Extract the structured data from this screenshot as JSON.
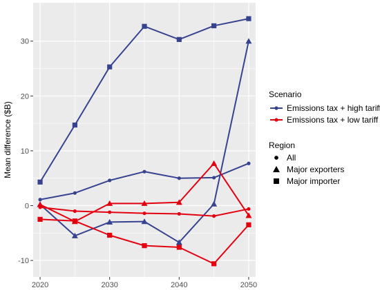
{
  "chart_data": {
    "type": "line",
    "xlabel": "",
    "ylabel": "Mean difference ($B)",
    "x": [
      2020,
      2025,
      2030,
      2035,
      2040,
      2045,
      2050
    ],
    "xticks": [
      "2020",
      "2030",
      "2040",
      "2050"
    ],
    "yticks": [
      "-10",
      "0",
      "10",
      "20",
      "30"
    ],
    "xlim": [
      2019,
      2051
    ],
    "ylim": [
      -13,
      37
    ],
    "grid": true,
    "background": "#ebebeb",
    "legend_placement": "right",
    "colors": {
      "Emissions tax + high tariff": "#36438f",
      "Emissions tax + low tariff": "#e3000f"
    },
    "shapes": {
      "All": "circle",
      "Major exporters": "triangle",
      "Major importer": "square"
    },
    "legend": {
      "color_title": "Scenario",
      "color_entries": [
        "Emissions tax + high tariff",
        "Emissions tax + low tariff"
      ],
      "shape_title": "Region",
      "shape_entries": [
        "All",
        "Major exporters",
        "Major importer"
      ]
    },
    "series": [
      {
        "scenario": "Emissions tax + high tariff",
        "region": "All",
        "values": [
          1.1,
          2.3,
          4.6,
          6.2,
          5.0,
          5.1,
          7.7
        ]
      },
      {
        "scenario": "Emissions tax + high tariff",
        "region": "Major exporters",
        "values": [
          0.2,
          -5.5,
          -3.0,
          -2.9,
          -6.7,
          0.3,
          30.0
        ]
      },
      {
        "scenario": "Emissions tax + high tariff",
        "region": "Major importer",
        "values": [
          4.3,
          14.7,
          25.3,
          32.7,
          30.3,
          32.8,
          34.1
        ]
      },
      {
        "scenario": "Emissions tax + low tariff",
        "region": "All",
        "values": [
          -0.3,
          -1.0,
          -1.2,
          -1.4,
          -1.5,
          -1.9,
          -0.6
        ]
      },
      {
        "scenario": "Emissions tax + low tariff",
        "region": "Major exporters",
        "values": [
          0.2,
          -2.9,
          0.4,
          0.4,
          0.6,
          7.7,
          -1.8
        ]
      },
      {
        "scenario": "Emissions tax + low tariff",
        "region": "Major importer",
        "values": [
          -2.5,
          -2.8,
          -5.4,
          -7.3,
          -7.6,
          -10.6,
          -3.5
        ]
      }
    ]
  }
}
